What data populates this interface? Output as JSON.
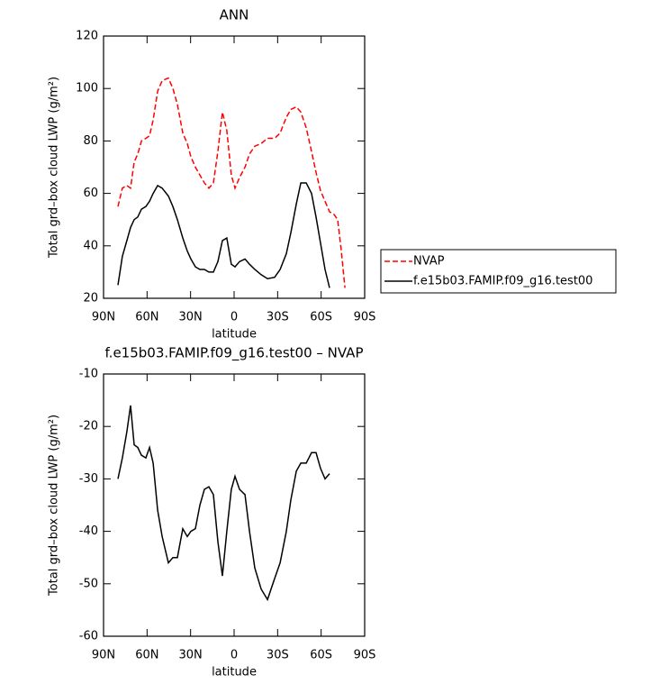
{
  "chart_data": [
    {
      "type": "line",
      "title": "ANN",
      "x_label": "latitude",
      "y_label": "Total grd–box cloud LWP (g/m²)",
      "x": [
        80.1,
        77.0,
        73.9,
        71.4,
        68.9,
        66.4,
        63.9,
        60.8,
        58.3,
        55.8,
        52.7,
        49.6,
        45.3,
        42.2,
        39.1,
        35.4,
        32.3,
        29.8,
        26.7,
        23.6,
        20.5,
        17.4,
        14.3,
        11.2,
        8.1,
        5.0,
        1.9,
        -0.6,
        -3.7,
        -7.5,
        -10.6,
        -14.3,
        -18.6,
        -23.0,
        -27.9,
        -31.7,
        -36.0,
        -39.1,
        -42.9,
        -46.0,
        -49.7,
        -53.4,
        -56.5,
        -59.6,
        -62.7,
        -65.8,
        -68.9,
        -71.4,
        -73.9,
        -76.4
      ],
      "series": [
        {
          "name": "NVAP",
          "color": "#ff0000",
          "dash": true,
          "values": [
            55,
            62,
            63,
            62,
            72,
            75,
            80,
            81,
            82,
            88,
            99,
            103,
            104,
            100,
            94,
            83,
            79,
            74,
            70,
            67,
            64,
            62,
            64,
            76,
            91,
            84,
            67,
            62,
            66,
            70,
            75,
            78,
            79,
            81,
            81,
            83,
            89,
            92,
            93,
            91,
            85,
            76,
            68,
            61,
            57,
            53,
            52,
            50,
            38,
            24
          ]
        },
        {
          "name": "f.e15b03.FAMIP.f09_g16.test00",
          "color": "#000000",
          "dash": false,
          "values": [
            25,
            36,
            42,
            47,
            50,
            51,
            54,
            55,
            57,
            60,
            63,
            62,
            59,
            55,
            50,
            43,
            38,
            35,
            32,
            31,
            31,
            30,
            30,
            34,
            42,
            43,
            33,
            32,
            34,
            35,
            33,
            31,
            29,
            27.5,
            28,
            31,
            37,
            45,
            56,
            64,
            64,
            60,
            51,
            41,
            31,
            24,
            null,
            null,
            null,
            null
          ]
        }
      ],
      "xlim": [
        90,
        -90
      ],
      "xticks": [
        {
          "value": 90,
          "label": "90N"
        },
        {
          "value": 60,
          "label": "60N"
        },
        {
          "value": 30,
          "label": "30N"
        },
        0,
        {
          "value": -30,
          "label": "30S"
        },
        {
          "value": -60,
          "label": "60S"
        },
        {
          "value": -90,
          "label": "90S"
        }
      ],
      "ylim": [
        20,
        120
      ],
      "yticks": [
        20,
        40,
        60,
        80,
        100,
        120
      ],
      "legend": "right"
    },
    {
      "type": "line",
      "title": "f.e15b03.FAMIP.f09_g16.test00 – NVAP",
      "x_label": "latitude",
      "y_label": "Total grd–box cloud LWP (g/m²)",
      "x": [
        80.1,
        77.0,
        73.9,
        71.4,
        68.9,
        66.4,
        63.9,
        60.8,
        58.3,
        55.8,
        52.7,
        49.6,
        45.3,
        42.2,
        39.1,
        35.4,
        32.3,
        29.8,
        26.7,
        23.6,
        20.5,
        17.4,
        14.3,
        11.2,
        8.1,
        5.0,
        1.9,
        -0.6,
        -3.7,
        -7.5,
        -10.6,
        -14.3,
        -18.6,
        -23.0,
        -27.9,
        -31.7,
        -36.0,
        -39.1,
        -42.9,
        -46.0,
        -49.7,
        -53.4,
        -56.5,
        -59.6,
        -62.7,
        -65.8
      ],
      "series": [
        {
          "color": "#000000",
          "dash": false,
          "values": [
            -30,
            -26,
            -21,
            -16,
            -23.5,
            -24,
            -25.5,
            -26,
            -24,
            -27,
            -36,
            -41,
            -46,
            -45,
            -45,
            -39.5,
            -41,
            -40,
            -39.5,
            -35,
            -32,
            -31.5,
            -33,
            -42,
            -48.5,
            -40,
            -32,
            -29.5,
            -32,
            -33,
            -40,
            -47,
            -51,
            -53,
            -49,
            -46,
            -40,
            -34,
            -28.5,
            -27,
            -27,
            -25,
            -25,
            -28,
            -30,
            -29
          ]
        }
      ],
      "xlim": [
        90,
        -90
      ],
      "xticks": [
        {
          "value": 90,
          "label": "90N"
        },
        {
          "value": 60,
          "label": "60N"
        },
        {
          "value": 30,
          "label": "30N"
        },
        0,
        {
          "value": -30,
          "label": "30S"
        },
        {
          "value": -60,
          "label": "60S"
        },
        {
          "value": -90,
          "label": "90S"
        }
      ],
      "ylim": [
        -60,
        -10
      ],
      "yticks": [
        -60,
        -50,
        -40,
        -30,
        -20,
        -10
      ]
    }
  ]
}
